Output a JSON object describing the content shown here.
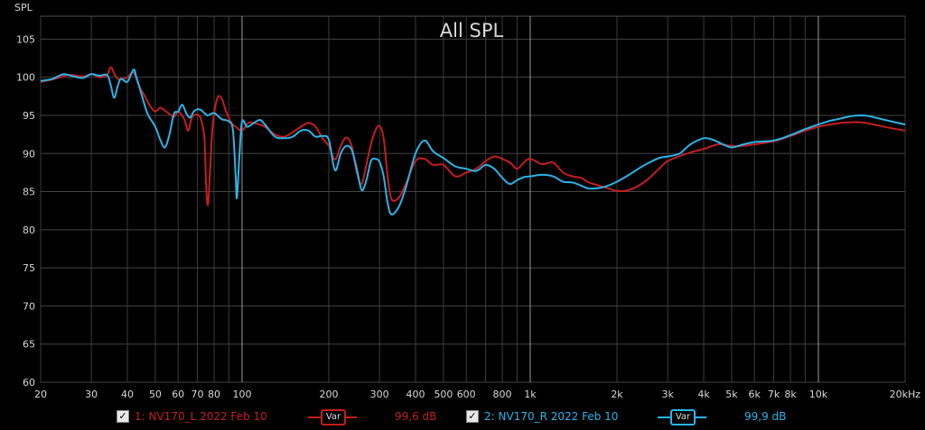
{
  "chart_data": {
    "type": "line",
    "title": "All SPL",
    "ylabel": "SPL",
    "x_scale": "log",
    "xlim": [
      20,
      20000
    ],
    "ylim": [
      60,
      108
    ],
    "yticks": [
      60,
      65,
      70,
      75,
      80,
      85,
      90,
      95,
      100,
      105
    ],
    "xticks": [
      {
        "value": 20,
        "label": "20"
      },
      {
        "value": 30,
        "label": "30"
      },
      {
        "value": 40,
        "label": "40"
      },
      {
        "value": 50,
        "label": "50"
      },
      {
        "value": 60,
        "label": "60"
      },
      {
        "value": 70,
        "label": "70"
      },
      {
        "value": 80,
        "label": "80"
      },
      {
        "value": 100,
        "label": "100"
      },
      {
        "value": 200,
        "label": "200"
      },
      {
        "value": 300,
        "label": "300"
      },
      {
        "value": 400,
        "label": "400"
      },
      {
        "value": 500,
        "label": "500"
      },
      {
        "value": 600,
        "label": "600"
      },
      {
        "value": 800,
        "label": "800"
      },
      {
        "value": 1000,
        "label": "1k"
      },
      {
        "value": 2000,
        "label": "2k"
      },
      {
        "value": 3000,
        "label": "3k"
      },
      {
        "value": 4000,
        "label": "4k"
      },
      {
        "value": 5000,
        "label": "5k"
      },
      {
        "value": 6000,
        "label": "6k"
      },
      {
        "value": 7000,
        "label": "7k"
      },
      {
        "value": 8000,
        "label": "8k"
      },
      {
        "value": 10000,
        "label": "10k"
      },
      {
        "value": 20000,
        "label": "20kHz"
      }
    ],
    "grid": true,
    "background": "#000000",
    "series": [
      {
        "name": "1: NV170_L 2022 Feb 10",
        "color": "#c41e1e",
        "points": [
          [
            20,
            99.4
          ],
          [
            22,
            99.7
          ],
          [
            25,
            100.3
          ],
          [
            28,
            100.1
          ],
          [
            30,
            100.4
          ],
          [
            32,
            100.0
          ],
          [
            34,
            100.3
          ],
          [
            35,
            101.3
          ],
          [
            36,
            100.5
          ],
          [
            37,
            99.8
          ],
          [
            38,
            99.7
          ],
          [
            40,
            100.0
          ],
          [
            42,
            100.6
          ],
          [
            44,
            98.8
          ],
          [
            46,
            97.5
          ],
          [
            48,
            96.2
          ],
          [
            50,
            95.5
          ],
          [
            52,
            96.0
          ],
          [
            55,
            95.4
          ],
          [
            58,
            94.8
          ],
          [
            60,
            95.5
          ],
          [
            63,
            94.5
          ],
          [
            65,
            93.0
          ],
          [
            67,
            94.7
          ],
          [
            70,
            95.1
          ],
          [
            72,
            94.5
          ],
          [
            74,
            92.0
          ],
          [
            75,
            86.0
          ],
          [
            76,
            83.2
          ],
          [
            77,
            86.0
          ],
          [
            79,
            93.5
          ],
          [
            82,
            97.2
          ],
          [
            85,
            97.2
          ],
          [
            88,
            95.5
          ],
          [
            92,
            94.0
          ],
          [
            95,
            93.5
          ],
          [
            100,
            93.0
          ],
          [
            105,
            94.0
          ],
          [
            110,
            94.0
          ],
          [
            120,
            93.5
          ],
          [
            130,
            92.5
          ],
          [
            140,
            92.2
          ],
          [
            150,
            92.8
          ],
          [
            160,
            93.5
          ],
          [
            170,
            94.0
          ],
          [
            180,
            93.5
          ],
          [
            190,
            92.0
          ],
          [
            200,
            91.0
          ],
          [
            210,
            89.2
          ],
          [
            220,
            91.0
          ],
          [
            230,
            92.1
          ],
          [
            240,
            91.0
          ],
          [
            250,
            87.5
          ],
          [
            260,
            86.0
          ],
          [
            270,
            88.5
          ],
          [
            280,
            91.2
          ],
          [
            290,
            93.0
          ],
          [
            300,
            93.6
          ],
          [
            310,
            92.0
          ],
          [
            320,
            87.0
          ],
          [
            330,
            84.0
          ],
          [
            350,
            84.2
          ],
          [
            370,
            86.0
          ],
          [
            400,
            89.0
          ],
          [
            430,
            89.3
          ],
          [
            460,
            88.5
          ],
          [
            500,
            88.5
          ],
          [
            550,
            87.0
          ],
          [
            600,
            87.5
          ],
          [
            650,
            88.0
          ],
          [
            700,
            89.0
          ],
          [
            750,
            89.6
          ],
          [
            800,
            89.3
          ],
          [
            850,
            88.8
          ],
          [
            900,
            88.0
          ],
          [
            950,
            88.8
          ],
          [
            1000,
            89.3
          ],
          [
            1100,
            88.6
          ],
          [
            1200,
            88.8
          ],
          [
            1300,
            87.5
          ],
          [
            1400,
            87.0
          ],
          [
            1500,
            86.8
          ],
          [
            1600,
            86.2
          ],
          [
            1800,
            85.6
          ],
          [
            2000,
            85.1
          ],
          [
            2200,
            85.2
          ],
          [
            2500,
            86.3
          ],
          [
            2800,
            88.0
          ],
          [
            3000,
            89.0
          ],
          [
            3500,
            90.0
          ],
          [
            4000,
            90.6
          ],
          [
            4500,
            91.2
          ],
          [
            5000,
            91.0
          ],
          [
            5500,
            91.0
          ],
          [
            6000,
            91.2
          ],
          [
            7000,
            91.6
          ],
          [
            8000,
            92.3
          ],
          [
            9000,
            93.0
          ],
          [
            10000,
            93.5
          ],
          [
            11000,
            93.8
          ],
          [
            12000,
            94.0
          ],
          [
            14000,
            94.1
          ],
          [
            16000,
            93.7
          ],
          [
            18000,
            93.3
          ],
          [
            20000,
            93.0
          ]
        ]
      },
      {
        "name": "2: NV170_R 2022 Feb 10",
        "color": "#2ab4e8",
        "points": [
          [
            20,
            99.5
          ],
          [
            22,
            99.8
          ],
          [
            24,
            100.4
          ],
          [
            26,
            100.1
          ],
          [
            28,
            99.9
          ],
          [
            30,
            100.4
          ],
          [
            32,
            100.2
          ],
          [
            34,
            100.3
          ],
          [
            35,
            99.0
          ],
          [
            36,
            97.3
          ],
          [
            37,
            98.8
          ],
          [
            38,
            99.8
          ],
          [
            40,
            99.4
          ],
          [
            42,
            101.0
          ],
          [
            43,
            100.0
          ],
          [
            45,
            97.5
          ],
          [
            47,
            95.2
          ],
          [
            50,
            93.5
          ],
          [
            52,
            91.8
          ],
          [
            54,
            90.8
          ],
          [
            56,
            92.5
          ],
          [
            58,
            95.2
          ],
          [
            60,
            95.5
          ],
          [
            62,
            96.4
          ],
          [
            64,
            95.3
          ],
          [
            66,
            94.7
          ],
          [
            68,
            95.5
          ],
          [
            70,
            95.8
          ],
          [
            72,
            95.7
          ],
          [
            74,
            95.3
          ],
          [
            76,
            95.0
          ],
          [
            80,
            95.3
          ],
          [
            85,
            94.5
          ],
          [
            90,
            94.2
          ],
          [
            93,
            93.0
          ],
          [
            95,
            87.0
          ],
          [
            96,
            84.2
          ],
          [
            98,
            90.0
          ],
          [
            100,
            94.2
          ],
          [
            104,
            93.5
          ],
          [
            108,
            93.8
          ],
          [
            115,
            94.4
          ],
          [
            120,
            93.8
          ],
          [
            130,
            92.2
          ],
          [
            140,
            92.0
          ],
          [
            150,
            92.2
          ],
          [
            160,
            93.0
          ],
          [
            170,
            93.0
          ],
          [
            180,
            92.2
          ],
          [
            190,
            92.3
          ],
          [
            200,
            91.8
          ],
          [
            210,
            87.8
          ],
          [
            220,
            90.0
          ],
          [
            230,
            91.0
          ],
          [
            240,
            90.5
          ],
          [
            250,
            88.0
          ],
          [
            260,
            85.2
          ],
          [
            270,
            86.5
          ],
          [
            280,
            89.0
          ],
          [
            290,
            89.3
          ],
          [
            300,
            88.9
          ],
          [
            310,
            87.0
          ],
          [
            320,
            83.5
          ],
          [
            330,
            82.0
          ],
          [
            350,
            83.0
          ],
          [
            370,
            85.5
          ],
          [
            400,
            90.0
          ],
          [
            430,
            91.7
          ],
          [
            460,
            90.3
          ],
          [
            500,
            89.4
          ],
          [
            550,
            88.3
          ],
          [
            600,
            88.0
          ],
          [
            650,
            87.7
          ],
          [
            700,
            88.5
          ],
          [
            750,
            88.0
          ],
          [
            800,
            86.8
          ],
          [
            850,
            86.0
          ],
          [
            900,
            86.5
          ],
          [
            950,
            86.9
          ],
          [
            1000,
            87.0
          ],
          [
            1100,
            87.2
          ],
          [
            1200,
            87.0
          ],
          [
            1300,
            86.3
          ],
          [
            1400,
            86.2
          ],
          [
            1500,
            85.8
          ],
          [
            1600,
            85.4
          ],
          [
            1800,
            85.6
          ],
          [
            2000,
            86.3
          ],
          [
            2200,
            87.2
          ],
          [
            2500,
            88.5
          ],
          [
            2800,
            89.4
          ],
          [
            3000,
            89.6
          ],
          [
            3300,
            90.0
          ],
          [
            3600,
            91.2
          ],
          [
            4000,
            92.0
          ],
          [
            4300,
            91.8
          ],
          [
            4600,
            91.3
          ],
          [
            5000,
            90.8
          ],
          [
            5500,
            91.2
          ],
          [
            6000,
            91.5
          ],
          [
            7000,
            91.7
          ],
          [
            8000,
            92.4
          ],
          [
            9000,
            93.2
          ],
          [
            10000,
            93.8
          ],
          [
            11000,
            94.3
          ],
          [
            12000,
            94.6
          ],
          [
            13000,
            94.9
          ],
          [
            14000,
            95.0
          ],
          [
            15000,
            94.9
          ],
          [
            17000,
            94.4
          ],
          [
            20000,
            93.8
          ]
        ]
      }
    ]
  },
  "legend": [
    {
      "checked": "✓",
      "name": "1: NV170_L 2022 Feb 10",
      "var_label": "Var",
      "value": "99,6 dB",
      "color": "#c41e1e"
    },
    {
      "checked": "✓",
      "name": "2: NV170_R 2022 Feb 10",
      "var_label": "Var",
      "value": "99,9 dB",
      "color": "#2ab4e8"
    }
  ]
}
